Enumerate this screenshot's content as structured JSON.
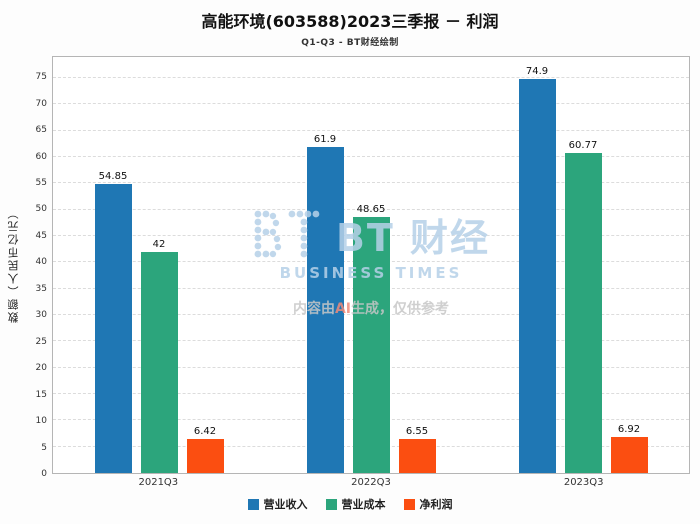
{
  "title": "高能环境(603588)2023三季报 － 利润",
  "subtitle": "Q1-Q3 - BT财经绘制",
  "watermark": {
    "logo_text": "BT 财经",
    "logo_sub": "BUSINESS TIMES",
    "disclaimer_pre": "内容由",
    "disclaimer_ai": "AI",
    "disclaimer_post": "生成，仅供参考"
  },
  "chart_data": {
    "type": "bar",
    "categories": [
      "2021Q3",
      "2022Q3",
      "2023Q3"
    ],
    "series": [
      {
        "name": "营业收入",
        "color": "#1f77b4",
        "values": [
          54.85,
          61.9,
          74.9
        ]
      },
      {
        "name": "营业成本",
        "color": "#2ca57c",
        "values": [
          42,
          48.65,
          60.77
        ]
      },
      {
        "name": "净利润",
        "color": "#fb4e11",
        "values": [
          6.42,
          6.55,
          6.92
        ]
      }
    ],
    "title": "高能环境(603588)2023三季报 － 利润",
    "xlabel": "",
    "ylabel": "数额（人民币亿元）",
    "ylim": [
      0,
      79
    ],
    "yticks": [
      0,
      5,
      10,
      15,
      20,
      25,
      30,
      35,
      40,
      45,
      50,
      55,
      60,
      65,
      70,
      75
    ],
    "grid": true,
    "legend_position": "bottom"
  }
}
